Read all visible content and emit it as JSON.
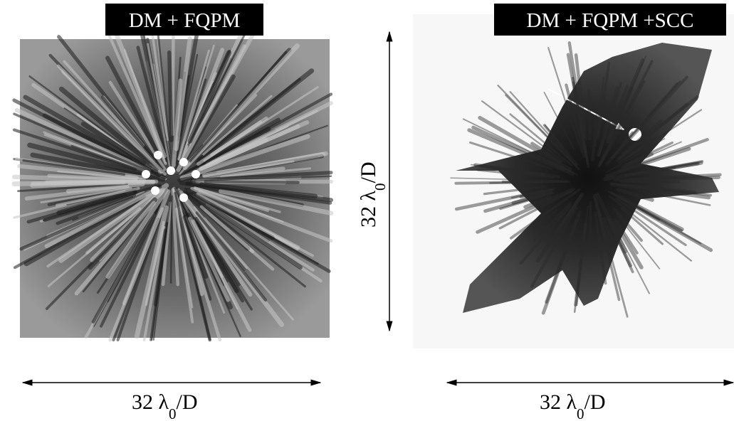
{
  "panels": [
    {
      "title": "DM + FQPM",
      "scale_label": {
        "main": "32 λ",
        "sub": "0",
        "tail": "/D"
      }
    },
    {
      "title": "DM + FQPM +SCC",
      "scale_label": {
        "main": "32 λ",
        "sub": "0",
        "tail": "/D"
      }
    }
  ],
  "vertical_label": {
    "main": "32 λ",
    "sub": "0",
    "tail": "/D"
  }
}
